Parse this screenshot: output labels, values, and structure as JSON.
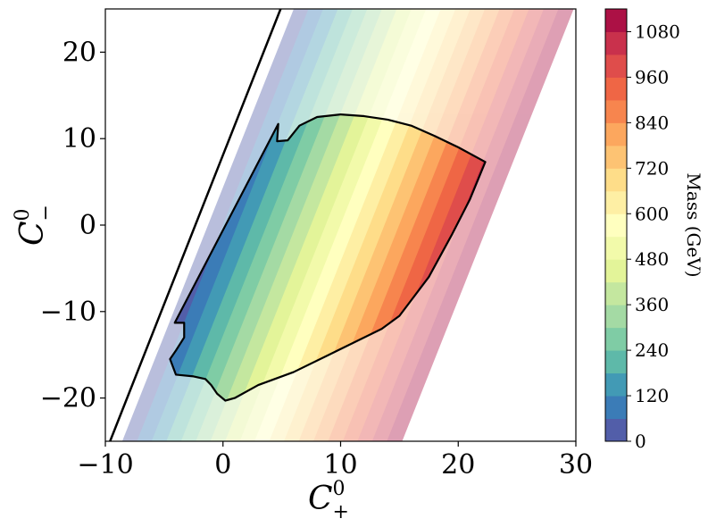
{
  "chart_data": {
    "type": "contour",
    "xlabel": "C",
    "xlabel_sup": "0",
    "xlabel_sub": "+",
    "ylabel": "C",
    "ylabel_sup": "0",
    "ylabel_sub": "−",
    "xlim": [
      -10,
      30
    ],
    "ylim": [
      -25,
      25
    ],
    "x_ticks": [
      -10,
      0,
      10,
      20,
      30
    ],
    "x_tick_labels": [
      "−10",
      "0",
      "10",
      "20",
      "30"
    ],
    "y_ticks": [
      -20,
      -10,
      0,
      10,
      20
    ],
    "y_tick_labels": [
      "−20",
      "−10",
      "0",
      "10",
      "20"
    ],
    "colorbar": {
      "label": "Mass (GeV)",
      "range": [
        0,
        1140
      ],
      "level_step": 60,
      "ticks": [
        0,
        120,
        240,
        360,
        480,
        600,
        720,
        840,
        960,
        1080
      ],
      "tick_labels": [
        "0",
        "120",
        "240",
        "360",
        "480",
        "600",
        "720",
        "840",
        "960",
        "1080"
      ],
      "colormap": [
        "#5e4fa2",
        "#3288bd",
        "#66c2a5",
        "#abdda4",
        "#e6f598",
        "#ffffbf",
        "#fee08b",
        "#fdae61",
        "#f46d43",
        "#d53e4f",
        "#9e0142"
      ]
    },
    "boundary_line": [
      [
        -9.6,
        -25
      ],
      [
        4.9,
        25
      ]
    ],
    "allowed_region_boundary": [
      [
        4.7,
        11.7
      ],
      [
        4.6,
        9.7
      ],
      [
        5.5,
        9.8
      ],
      [
        6.5,
        11.5
      ],
      [
        8.0,
        12.5
      ],
      [
        10.0,
        12.8
      ],
      [
        12.0,
        12.6
      ],
      [
        14.0,
        12.2
      ],
      [
        16.0,
        11.5
      ],
      [
        18.0,
        10.3
      ],
      [
        20.0,
        9.0
      ],
      [
        22.3,
        7.3
      ],
      [
        21.0,
        3.0
      ],
      [
        19.5,
        -1.0
      ],
      [
        17.5,
        -6.0
      ],
      [
        15.0,
        -10.5
      ],
      [
        13.5,
        -12.0
      ],
      [
        9.0,
        -15.0
      ],
      [
        6.0,
        -17.0
      ],
      [
        3.0,
        -18.5
      ],
      [
        1.0,
        -20.0
      ],
      [
        0.2,
        -20.3
      ],
      [
        -0.5,
        -19.5
      ],
      [
        -1.0,
        -18.5
      ],
      [
        -1.5,
        -17.8
      ],
      [
        -2.5,
        -17.5
      ],
      [
        -4.0,
        -17.3
      ],
      [
        -4.5,
        -15.5
      ],
      [
        -4.0,
        -14.5
      ],
      [
        -3.3,
        -13.0
      ],
      [
        -3.3,
        -11.3
      ],
      [
        -4.1,
        -11.3
      ]
    ]
  }
}
